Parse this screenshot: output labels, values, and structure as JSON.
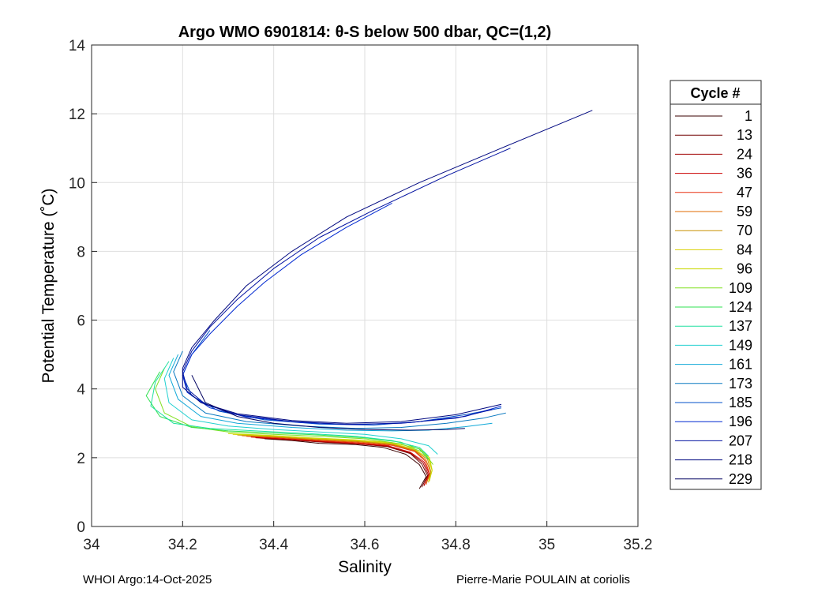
{
  "chart_data": {
    "type": "line",
    "title": "Argo WMO 6901814: θ-S below 500 dbar,  QC=(1,2)",
    "xlabel": "Salinity",
    "ylabel": "Potential Temperature (˚C)",
    "xlim": [
      34,
      35.2
    ],
    "ylim": [
      0,
      14
    ],
    "x_ticks": [
      34,
      34.2,
      34.4,
      34.6,
      34.8,
      35,
      35.2
    ],
    "x_tick_labels": [
      "34",
      "34.2",
      "34.4",
      "34.6",
      "34.8",
      "35",
      "35.2"
    ],
    "y_ticks": [
      0,
      2,
      4,
      6,
      8,
      10,
      12,
      14
    ],
    "y_tick_labels": [
      "0",
      "2",
      "4",
      "6",
      "8",
      "10",
      "12",
      "14"
    ],
    "grid": true,
    "legend": {
      "title": "Cycle #",
      "placement": "right",
      "entries": [
        {
          "label": "1",
          "color": "#3a0000"
        },
        {
          "label": "13",
          "color": "#700000"
        },
        {
          "label": "24",
          "color": "#a00000"
        },
        {
          "label": "36",
          "color": "#cc0000"
        },
        {
          "label": "47",
          "color": "#e83010"
        },
        {
          "label": "59",
          "color": "#e06a00"
        },
        {
          "label": "70",
          "color": "#c89000"
        },
        {
          "label": "84",
          "color": "#d8d000"
        },
        {
          "label": "96",
          "color": "#c8d800"
        },
        {
          "label": "109",
          "color": "#80e020"
        },
        {
          "label": "124",
          "color": "#30e050"
        },
        {
          "label": "137",
          "color": "#20e0a0"
        },
        {
          "label": "149",
          "color": "#20d0d0"
        },
        {
          "label": "161",
          "color": "#10a8d8"
        },
        {
          "label": "173",
          "color": "#0878c0"
        },
        {
          "label": "185",
          "color": "#0050c8"
        },
        {
          "label": "196",
          "color": "#0028d0"
        },
        {
          "label": "207",
          "color": "#0010a0"
        },
        {
          "label": "218",
          "color": "#000880"
        },
        {
          "label": "229",
          "color": "#000060"
        }
      ]
    },
    "series": [
      {
        "name": "1",
        "color": "#3a0000",
        "points": [
          [
            34.38,
            2.55
          ],
          [
            34.44,
            2.5
          ],
          [
            34.5,
            2.42
          ],
          [
            34.58,
            2.38
          ],
          [
            34.64,
            2.3
          ],
          [
            34.69,
            2.1
          ],
          [
            34.72,
            1.8
          ],
          [
            34.735,
            1.45
          ],
          [
            34.72,
            1.1
          ]
        ]
      },
      {
        "name": "13",
        "color": "#700000",
        "points": [
          [
            34.37,
            2.57
          ],
          [
            34.44,
            2.52
          ],
          [
            34.51,
            2.45
          ],
          [
            34.59,
            2.4
          ],
          [
            34.65,
            2.32
          ],
          [
            34.7,
            2.12
          ],
          [
            34.725,
            1.82
          ],
          [
            34.738,
            1.48
          ],
          [
            34.725,
            1.14
          ]
        ]
      },
      {
        "name": "24",
        "color": "#a00000",
        "points": [
          [
            34.36,
            2.58
          ],
          [
            34.43,
            2.53
          ],
          [
            34.5,
            2.46
          ],
          [
            34.58,
            2.41
          ],
          [
            34.65,
            2.33
          ],
          [
            34.7,
            2.14
          ],
          [
            34.728,
            1.85
          ],
          [
            34.74,
            1.5
          ],
          [
            34.73,
            1.18
          ]
        ]
      },
      {
        "name": "36",
        "color": "#cc0000",
        "points": [
          [
            34.35,
            2.6
          ],
          [
            34.42,
            2.55
          ],
          [
            34.5,
            2.48
          ],
          [
            34.58,
            2.42
          ],
          [
            34.65,
            2.35
          ],
          [
            34.7,
            2.16
          ],
          [
            34.73,
            1.88
          ],
          [
            34.742,
            1.52
          ],
          [
            34.73,
            1.2
          ]
        ]
      },
      {
        "name": "47",
        "color": "#e83010",
        "points": [
          [
            34.34,
            2.62
          ],
          [
            34.42,
            2.57
          ],
          [
            34.5,
            2.5
          ],
          [
            34.58,
            2.44
          ],
          [
            34.66,
            2.36
          ],
          [
            34.71,
            2.18
          ],
          [
            34.733,
            1.9
          ],
          [
            34.742,
            1.55
          ],
          [
            34.735,
            1.22
          ]
        ]
      },
      {
        "name": "59",
        "color": "#e06a00",
        "points": [
          [
            34.33,
            2.64
          ],
          [
            34.41,
            2.59
          ],
          [
            34.49,
            2.52
          ],
          [
            34.58,
            2.46
          ],
          [
            34.66,
            2.38
          ],
          [
            34.71,
            2.2
          ],
          [
            34.735,
            1.92
          ],
          [
            34.745,
            1.57
          ],
          [
            34.735,
            1.25
          ]
        ]
      },
      {
        "name": "70",
        "color": "#c89000",
        "points": [
          [
            34.32,
            2.66
          ],
          [
            34.4,
            2.61
          ],
          [
            34.49,
            2.54
          ],
          [
            34.58,
            2.48
          ],
          [
            34.66,
            2.4
          ],
          [
            34.71,
            2.22
          ],
          [
            34.738,
            1.95
          ],
          [
            34.745,
            1.6
          ],
          [
            34.74,
            1.28
          ]
        ]
      },
      {
        "name": "84",
        "color": "#d8d000",
        "points": [
          [
            34.31,
            2.68
          ],
          [
            34.4,
            2.63
          ],
          [
            34.49,
            2.56
          ],
          [
            34.58,
            2.5
          ],
          [
            34.66,
            2.42
          ],
          [
            34.71,
            2.24
          ],
          [
            34.74,
            1.98
          ],
          [
            34.748,
            1.62
          ],
          [
            34.74,
            1.3
          ]
        ]
      },
      {
        "name": "96",
        "color": "#c8d800",
        "points": [
          [
            34.3,
            2.7
          ],
          [
            34.39,
            2.65
          ],
          [
            34.48,
            2.58
          ],
          [
            34.58,
            2.52
          ],
          [
            34.66,
            2.44
          ],
          [
            34.72,
            2.26
          ],
          [
            34.742,
            2.0
          ],
          [
            34.748,
            1.65
          ],
          [
            34.742,
            1.32
          ]
        ]
      },
      {
        "name": "109",
        "color": "#80e020",
        "points": [
          [
            34.16,
            4.6
          ],
          [
            34.14,
            4.0
          ],
          [
            34.16,
            3.3
          ],
          [
            34.22,
            2.9
          ],
          [
            34.3,
            2.75
          ],
          [
            34.4,
            2.68
          ],
          [
            34.5,
            2.62
          ],
          [
            34.6,
            2.55
          ],
          [
            34.68,
            2.4
          ],
          [
            34.73,
            2.15
          ],
          [
            34.75,
            1.8
          ]
        ]
      },
      {
        "name": "124",
        "color": "#30e050",
        "points": [
          [
            34.15,
            4.5
          ],
          [
            34.12,
            3.8
          ],
          [
            34.15,
            3.2
          ],
          [
            34.22,
            2.88
          ],
          [
            34.3,
            2.78
          ],
          [
            34.4,
            2.72
          ],
          [
            34.5,
            2.66
          ],
          [
            34.6,
            2.58
          ],
          [
            34.68,
            2.45
          ],
          [
            34.72,
            2.25
          ],
          [
            34.74,
            1.95
          ]
        ]
      },
      {
        "name": "137",
        "color": "#20e0a0",
        "points": [
          [
            34.17,
            4.8
          ],
          [
            34.14,
            4.2
          ],
          [
            34.13,
            3.5
          ],
          [
            34.18,
            3.0
          ],
          [
            34.26,
            2.85
          ],
          [
            34.36,
            2.78
          ],
          [
            34.48,
            2.7
          ],
          [
            34.58,
            2.62
          ],
          [
            34.66,
            2.5
          ],
          [
            34.72,
            2.3
          ],
          [
            34.74,
            2.05
          ]
        ]
      },
      {
        "name": "149",
        "color": "#20d0d0",
        "points": [
          [
            34.18,
            4.9
          ],
          [
            34.16,
            4.3
          ],
          [
            34.17,
            3.6
          ],
          [
            34.22,
            3.1
          ],
          [
            34.3,
            2.92
          ],
          [
            34.4,
            2.82
          ],
          [
            34.5,
            2.75
          ],
          [
            34.6,
            2.68
          ],
          [
            34.68,
            2.55
          ],
          [
            34.74,
            2.35
          ],
          [
            34.76,
            2.1
          ]
        ]
      },
      {
        "name": "161",
        "color": "#10a8d8",
        "points": [
          [
            34.19,
            5.0
          ],
          [
            34.17,
            4.4
          ],
          [
            34.19,
            3.7
          ],
          [
            34.24,
            3.2
          ],
          [
            34.32,
            3.0
          ],
          [
            34.44,
            2.88
          ],
          [
            34.56,
            2.8
          ],
          [
            34.66,
            2.78
          ],
          [
            34.74,
            2.8
          ],
          [
            34.82,
            2.9
          ],
          [
            34.88,
            3.0
          ]
        ]
      },
      {
        "name": "173",
        "color": "#0878c0",
        "points": [
          [
            34.2,
            5.1
          ],
          [
            34.18,
            4.5
          ],
          [
            34.2,
            3.8
          ],
          [
            34.25,
            3.3
          ],
          [
            34.34,
            3.05
          ],
          [
            34.46,
            2.92
          ],
          [
            34.58,
            2.85
          ],
          [
            34.68,
            2.88
          ],
          [
            34.78,
            3.0
          ],
          [
            34.86,
            3.15
          ],
          [
            34.91,
            3.3
          ]
        ]
      },
      {
        "name": "185",
        "color": "#0050c8",
        "points": [
          [
            34.26,
            5.7
          ],
          [
            34.22,
            5.0
          ],
          [
            34.2,
            4.4
          ],
          [
            34.22,
            3.8
          ],
          [
            34.28,
            3.35
          ],
          [
            34.38,
            3.1
          ],
          [
            34.5,
            2.98
          ],
          [
            34.62,
            2.95
          ],
          [
            34.72,
            3.05
          ],
          [
            34.82,
            3.25
          ],
          [
            34.9,
            3.45
          ]
        ]
      },
      {
        "name": "196",
        "color": "#0028d0",
        "points": [
          [
            34.66,
            9.4
          ],
          [
            34.56,
            8.7
          ],
          [
            34.46,
            7.9
          ],
          [
            34.38,
            7.1
          ],
          [
            34.32,
            6.4
          ],
          [
            34.26,
            5.6
          ],
          [
            34.22,
            5.0
          ],
          [
            34.2,
            4.4
          ],
          [
            34.21,
            3.9
          ],
          [
            34.26,
            3.45
          ],
          [
            34.34,
            3.18
          ],
          [
            34.46,
            3.02
          ],
          [
            34.58,
            2.96
          ],
          [
            34.7,
            3.02
          ],
          [
            34.82,
            3.2
          ],
          [
            34.9,
            3.5
          ]
        ]
      },
      {
        "name": "207",
        "color": "#0010a0",
        "points": [
          [
            34.92,
            11.0
          ],
          [
            34.78,
            10.2
          ],
          [
            34.62,
            9.2
          ],
          [
            34.5,
            8.4
          ],
          [
            34.4,
            7.5
          ],
          [
            34.32,
            6.6
          ],
          [
            34.26,
            5.8
          ],
          [
            34.22,
            5.1
          ],
          [
            34.2,
            4.5
          ],
          [
            34.21,
            4.0
          ],
          [
            34.25,
            3.55
          ],
          [
            34.32,
            3.25
          ],
          [
            34.44,
            3.05
          ],
          [
            34.56,
            2.97
          ],
          [
            34.68,
            3.0
          ],
          [
            34.8,
            3.15
          ],
          [
            34.88,
            3.4
          ]
        ]
      },
      {
        "name": "218",
        "color": "#000880",
        "points": [
          [
            35.1,
            12.1
          ],
          [
            34.9,
            11.0
          ],
          [
            34.72,
            10.0
          ],
          [
            34.56,
            9.0
          ],
          [
            34.44,
            8.0
          ],
          [
            34.34,
            7.0
          ],
          [
            34.27,
            6.0
          ],
          [
            34.22,
            5.2
          ],
          [
            34.2,
            4.6
          ],
          [
            34.2,
            4.05
          ],
          [
            34.24,
            3.6
          ],
          [
            34.32,
            3.28
          ],
          [
            34.44,
            3.08
          ],
          [
            34.56,
            3.0
          ],
          [
            34.68,
            3.05
          ],
          [
            34.8,
            3.25
          ],
          [
            34.9,
            3.55
          ]
        ]
      },
      {
        "name": "229",
        "color": "#000060",
        "points": [
          [
            34.22,
            4.4
          ],
          [
            34.25,
            3.6
          ],
          [
            34.32,
            3.2
          ],
          [
            34.4,
            3.0
          ],
          [
            34.5,
            2.88
          ],
          [
            34.6,
            2.82
          ],
          [
            34.7,
            2.8
          ],
          [
            34.78,
            2.82
          ],
          [
            34.82,
            2.85
          ]
        ]
      }
    ]
  },
  "footer": {
    "left": "WHOI Argo:14-Oct-2025",
    "right": "Pierre-Marie POULAIN at coriolis"
  }
}
